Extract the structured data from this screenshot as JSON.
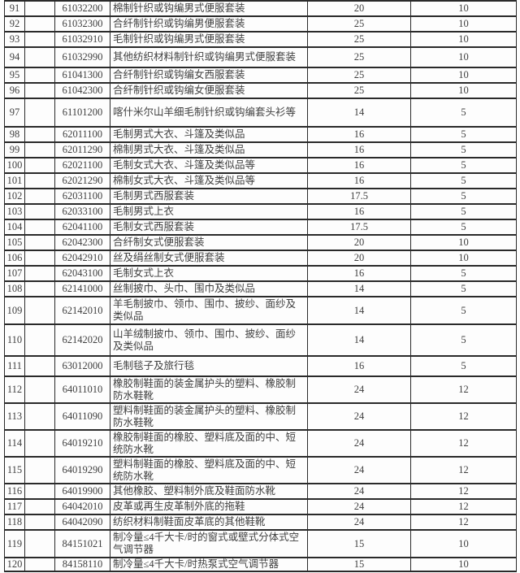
{
  "colors": {
    "border": "#2a2a2a",
    "text": "#3f3f3f",
    "background": "#fdfdfd"
  },
  "table": {
    "description": "tariff-rate-table-rows-91-120",
    "columns": [
      "row_number",
      "blank",
      "hs_code",
      "product_description",
      "rate_1",
      "rate_2"
    ],
    "rows": [
      {
        "index": "91",
        "blank": "",
        "hs_code": "61032200",
        "description": "棉制针织或钩编男式便服套装",
        "rate1": "20",
        "rate2": "10"
      },
      {
        "index": "92",
        "blank": "",
        "hs_code": "61032300",
        "description": "合纤制针织或钩编男便服套装",
        "rate1": "25",
        "rate2": "10"
      },
      {
        "index": "93",
        "blank": "",
        "hs_code": "61032910",
        "description": "毛制针织或钩编男式便服套装",
        "rate1": "25",
        "rate2": "10"
      },
      {
        "index": "94",
        "blank": "",
        "hs_code": "61032990",
        "description": "其他纺织材料制针织或钩编男式便服套装",
        "rate1": "25",
        "rate2": "10"
      },
      {
        "index": "95",
        "blank": "",
        "hs_code": "61041300",
        "description": "合纤制针织或钩编女西服套装",
        "rate1": "25",
        "rate2": "10"
      },
      {
        "index": "96",
        "blank": "",
        "hs_code": "61042300",
        "description": "合纤制针织或钩编女便服套装",
        "rate1": "25",
        "rate2": "10"
      },
      {
        "index": "97",
        "blank": "",
        "hs_code": "61101200",
        "description": "喀什米尔山羊细毛制针织或钩编套头衫等",
        "rate1": "14",
        "rate2": "5"
      },
      {
        "index": "98",
        "blank": "",
        "hs_code": "62011100",
        "description": "毛制男式大衣、斗篷及类似品",
        "rate1": "16",
        "rate2": "5"
      },
      {
        "index": "99",
        "blank": "",
        "hs_code": "62011290",
        "description": "棉制男式大衣、斗篷及类似品",
        "rate1": "16",
        "rate2": "5"
      },
      {
        "index": "100",
        "blank": "",
        "hs_code": "62021100",
        "description": "毛制女式大衣、斗篷及类似品等",
        "rate1": "16",
        "rate2": "5"
      },
      {
        "index": "101",
        "blank": "",
        "hs_code": "62021290",
        "description": "棉制女式大衣、斗篷及类似品等",
        "rate1": "16",
        "rate2": "5"
      },
      {
        "index": "102",
        "blank": "",
        "hs_code": "62031100",
        "description": "毛制男式西服套装",
        "rate1": "17.5",
        "rate2": "5"
      },
      {
        "index": "103",
        "blank": "",
        "hs_code": "62033100",
        "description": "毛制男式上衣",
        "rate1": "16",
        "rate2": "5"
      },
      {
        "index": "104",
        "blank": "",
        "hs_code": "62041100",
        "description": "毛制女式西服套装",
        "rate1": "17.5",
        "rate2": "5"
      },
      {
        "index": "105",
        "blank": "",
        "hs_code": "62042300",
        "description": "合纤制女式便服套装",
        "rate1": "20",
        "rate2": "10"
      },
      {
        "index": "106",
        "blank": "",
        "hs_code": "62042910",
        "description": "丝及绢丝制女式便服套装",
        "rate1": "20",
        "rate2": "10"
      },
      {
        "index": "107",
        "blank": "",
        "hs_code": "62043100",
        "description": "毛制女式上衣",
        "rate1": "16",
        "rate2": "5"
      },
      {
        "index": "108",
        "blank": "",
        "hs_code": "62141000",
        "description": "丝制披巾、头巾、围巾及类似品",
        "rate1": "14",
        "rate2": "5"
      },
      {
        "index": "109",
        "blank": "",
        "hs_code": "62142010",
        "description": "羊毛制披巾、领巾、围巾、披纱、面纱及类似品",
        "rate1": "14",
        "rate2": "5"
      },
      {
        "index": "110",
        "blank": "",
        "hs_code": "62142020",
        "description": "山羊绒制披巾、领巾、围巾、披纱、面纱及类似品",
        "rate1": "14",
        "rate2": "5"
      },
      {
        "index": "111",
        "blank": "",
        "hs_code": "63012000",
        "description": "毛制毯子及旅行毯",
        "rate1": "16",
        "rate2": "5"
      },
      {
        "index": "112",
        "blank": "",
        "hs_code": "64011010",
        "description": "橡胶制鞋面的装金属护头的塑料、橡胶制防水鞋靴",
        "rate1": "24",
        "rate2": "12"
      },
      {
        "index": "113",
        "blank": "",
        "hs_code": "64011090",
        "description": "塑料制鞋面的装金属护头的塑料、橡胶制防水鞋靴",
        "rate1": "24",
        "rate2": "12"
      },
      {
        "index": "114",
        "blank": "",
        "hs_code": "64019210",
        "description": "橡胶制鞋面的橡胶、塑料底及面的中、短统防水靴",
        "rate1": "24",
        "rate2": "12"
      },
      {
        "index": "115",
        "blank": "",
        "hs_code": "64019290",
        "description": "塑料制鞋面的橡胶、塑料底及面的中、短统防水靴",
        "rate1": "24",
        "rate2": "12"
      },
      {
        "index": "116",
        "blank": "",
        "hs_code": "64019900",
        "description": "其他橡胶、塑料制外底及鞋面防水靴",
        "rate1": "24",
        "rate2": "12"
      },
      {
        "index": "117",
        "blank": "",
        "hs_code": "64042010",
        "description": "皮革或再生皮革制外底的拖鞋",
        "rate1": "24",
        "rate2": "12"
      },
      {
        "index": "118",
        "blank": "",
        "hs_code": "64042090",
        "description": "纺织材料制鞋面皮革底的其他鞋靴",
        "rate1": "24",
        "rate2": "12"
      },
      {
        "index": "119",
        "blank": "",
        "hs_code": "84151021",
        "description": "制冷量≤4千大卡/时的窗式或壁式分体式空气调节器",
        "rate1": "15",
        "rate2": "10"
      },
      {
        "index": "120",
        "blank": "",
        "hs_code": "84158110",
        "description": "制冷量≤4千大卡/时热泵式空气调节器",
        "rate1": "15",
        "rate2": "10"
      }
    ]
  }
}
